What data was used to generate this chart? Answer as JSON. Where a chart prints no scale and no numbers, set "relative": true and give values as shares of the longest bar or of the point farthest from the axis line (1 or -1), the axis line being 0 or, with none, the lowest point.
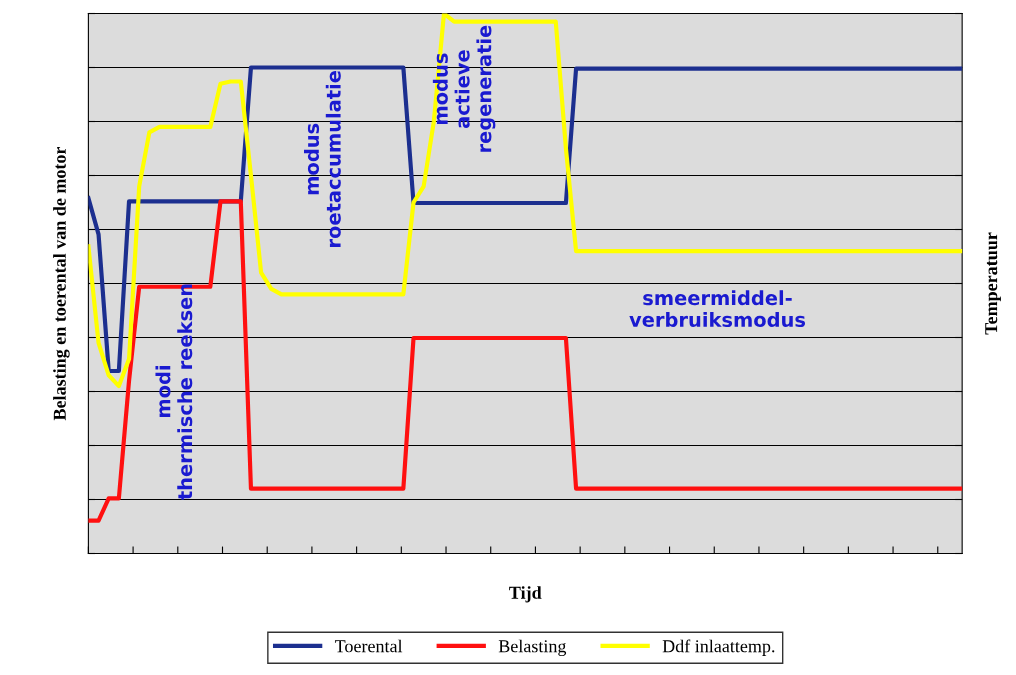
{
  "chart_data": {
    "type": "line",
    "relative": true,
    "xlabel": "Tijd",
    "ylabel": "Belasting en toerental van de motor",
    "y2label": "Temperatuur",
    "categories": [
      null,
      null,
      null,
      null,
      null,
      null,
      null,
      null,
      null,
      null,
      null,
      null,
      null,
      null,
      null,
      null,
      null,
      null,
      null,
      null,
      null,
      null,
      null,
      null,
      null,
      null,
      null,
      null,
      null,
      null,
      null,
      null,
      null,
      null,
      null,
      null,
      null,
      null,
      null,
      null,
      null,
      null,
      null,
      null,
      null,
      null,
      null,
      null,
      null,
      null,
      null,
      null,
      null,
      null,
      null,
      null,
      null,
      null,
      null,
      null,
      null,
      null,
      null,
      null,
      null,
      null,
      null,
      null,
      null,
      null,
      null,
      null,
      null,
      null,
      null,
      null,
      null,
      null,
      null,
      null,
      null,
      null,
      null,
      null,
      null,
      null,
      null
    ],
    "series": [
      {
        "name": "Toerental",
        "color": "#1c2f8f",
        "values": [
          0.658,
          0.591,
          0.338,
          0.338,
          0.652,
          0.652,
          0.652,
          0.652,
          0.652,
          0.652,
          0.652,
          0.652,
          0.652,
          0.652,
          0.652,
          0.652,
          0.9,
          0.9,
          0.9,
          0.9,
          0.9,
          0.9,
          0.9,
          0.9,
          0.9,
          0.9,
          0.9,
          0.9,
          0.9,
          0.9,
          0.9,
          0.9,
          0.649,
          0.649,
          0.649,
          0.649,
          0.649,
          0.649,
          0.649,
          0.649,
          0.649,
          0.649,
          0.649,
          0.649,
          0.649,
          0.649,
          0.649,
          0.649,
          0.898,
          0.898,
          0.898,
          0.898,
          0.898,
          0.898,
          0.898,
          0.898,
          0.898,
          0.898,
          0.898,
          0.898,
          0.898,
          0.898,
          0.898,
          0.898,
          0.898,
          0.898,
          0.898,
          0.898,
          0.898,
          0.898,
          0.898,
          0.898,
          0.898,
          0.898,
          0.898,
          0.898,
          0.898,
          0.898,
          0.898,
          0.898,
          0.898,
          0.898,
          0.898,
          0.898,
          0.898,
          0.898,
          0.898
        ]
      },
      {
        "name": "Belasting",
        "color": "#ff1010",
        "values": [
          0.061,
          0.061,
          0.102,
          0.102,
          0.32,
          0.494,
          0.494,
          0.494,
          0.494,
          0.494,
          0.494,
          0.494,
          0.494,
          0.652,
          0.652,
          0.652,
          0.12,
          0.12,
          0.12,
          0.12,
          0.12,
          0.12,
          0.12,
          0.12,
          0.12,
          0.12,
          0.12,
          0.12,
          0.12,
          0.12,
          0.12,
          0.12,
          0.399,
          0.399,
          0.399,
          0.399,
          0.399,
          0.399,
          0.399,
          0.399,
          0.399,
          0.399,
          0.399,
          0.399,
          0.399,
          0.399,
          0.399,
          0.399,
          0.12,
          0.12,
          0.12,
          0.12,
          0.12,
          0.12,
          0.12,
          0.12,
          0.12,
          0.12,
          0.12,
          0.12,
          0.12,
          0.12,
          0.12,
          0.12,
          0.12,
          0.12,
          0.12,
          0.12,
          0.12,
          0.12,
          0.12,
          0.12,
          0.12,
          0.12,
          0.12,
          0.12,
          0.12,
          0.12,
          0.12,
          0.12,
          0.12,
          0.12,
          0.12,
          0.12,
          0.12,
          0.12,
          0.12
        ]
      },
      {
        "name": "Ddf inlaattemp.",
        "color": "#ffff00",
        "values": [
          0.569,
          0.39,
          0.33,
          0.31,
          0.36,
          0.68,
          0.78,
          0.79,
          0.79,
          0.79,
          0.79,
          0.79,
          0.79,
          0.87,
          0.874,
          0.874,
          0.7,
          0.52,
          0.49,
          0.48,
          0.48,
          0.48,
          0.48,
          0.48,
          0.48,
          0.48,
          0.48,
          0.48,
          0.48,
          0.48,
          0.48,
          0.48,
          0.65,
          0.68,
          0.8,
          1,
          0.985,
          0.985,
          0.985,
          0.985,
          0.985,
          0.985,
          0.985,
          0.985,
          0.985,
          0.985,
          0.985,
          0.75,
          0.56,
          0.56,
          0.56,
          0.56,
          0.56,
          0.56,
          0.56,
          0.56,
          0.56,
          0.56,
          0.56,
          0.56,
          0.56,
          0.56,
          0.56,
          0.56,
          0.56,
          0.56,
          0.56,
          0.56,
          0.56,
          0.56,
          0.56,
          0.56,
          0.56,
          0.56,
          0.56,
          0.56,
          0.56,
          0.56,
          0.56,
          0.56,
          0.56,
          0.56,
          0.56,
          0.56,
          0.56,
          0.56,
          0.56
        ]
      }
    ],
    "annotations": [
      "modi thermische reeksen",
      "modus roetaccumulatie",
      "modus actieve regeneratie",
      "smeermiddel-verbruiksmodus"
    ],
    "grid": "y",
    "legend": "bottom"
  }
}
